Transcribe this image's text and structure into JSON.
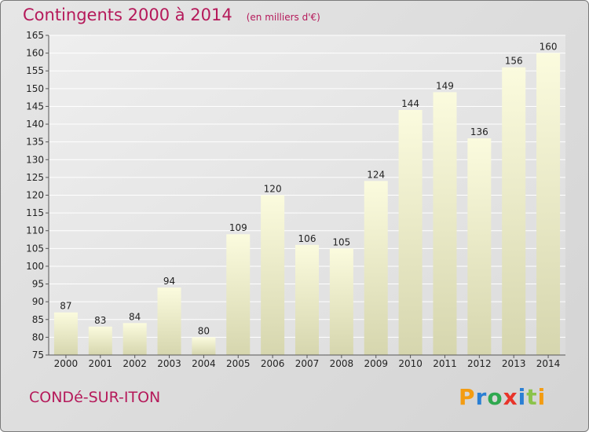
{
  "header": {
    "title": "Contingents 2000 à 2014",
    "subtitle": "(en milliers d'€)"
  },
  "footer": {
    "commune": "CONDé-SUR-ITON",
    "logo": {
      "letters": [
        "P",
        "r",
        "o",
        "x",
        "i",
        "t",
        "i"
      ],
      "colors": [
        "#f39c12",
        "#2a7fd4",
        "#2fa84f",
        "#e8342a",
        "#2a7fd4",
        "#8bc34a",
        "#f39c12"
      ]
    }
  },
  "chart_data": {
    "type": "bar",
    "title": "Contingents 2000 à 2014",
    "subtitle": "(en milliers d'€)",
    "categories": [
      "2000",
      "2001",
      "2002",
      "2003",
      "2004",
      "2005",
      "2006",
      "2007",
      "2008",
      "2009",
      "2010",
      "2011",
      "2012",
      "2013",
      "2014"
    ],
    "values": [
      87,
      83,
      84,
      94,
      80,
      109,
      120,
      106,
      105,
      124,
      144,
      149,
      136,
      156,
      160
    ],
    "ylim": [
      75,
      165
    ],
    "yticks": [
      75,
      80,
      85,
      90,
      95,
      100,
      105,
      110,
      115,
      120,
      125,
      130,
      135,
      140,
      145,
      150,
      155,
      160,
      165
    ],
    "grid": true,
    "bar_color": "#f7f7cd",
    "bar_color_dark": "#d8d8b0"
  }
}
